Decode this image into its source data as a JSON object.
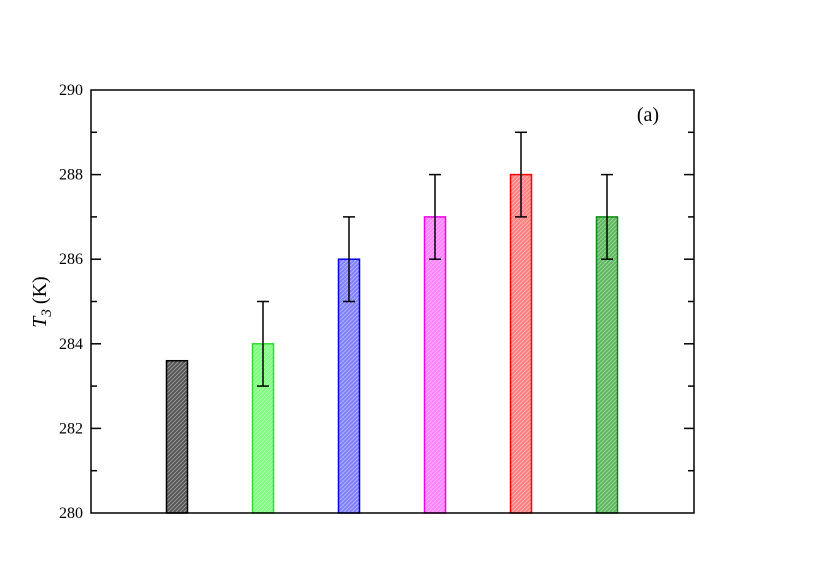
{
  "chart_data": {
    "type": "bar",
    "title": "",
    "panel_label": "(a)",
    "xlabel": "",
    "ylabel": {
      "symbol": "T",
      "subscript": "3",
      "unit": " (K)"
    },
    "ylim": [
      280,
      290
    ],
    "yticks": [
      280,
      282,
      284,
      286,
      288,
      290
    ],
    "ytick_labels": [
      "280",
      "282",
      "284",
      "286",
      "288",
      "290"
    ],
    "grid": false,
    "legend": "none",
    "bars": [
      {
        "value": 283.6,
        "error": null,
        "color": "#555555",
        "edge": "#000000"
      },
      {
        "value": 284.0,
        "error": 1.0,
        "color": "#7cff7c",
        "edge": "#2fdc2f"
      },
      {
        "value": 286.0,
        "error": 1.0,
        "color": "#7f7fff",
        "edge": "#0000ee"
      },
      {
        "value": 287.0,
        "error": 1.0,
        "color": "#ff7fff",
        "edge": "#ee00ee"
      },
      {
        "value": 288.0,
        "error": 1.0,
        "color": "#ff7f7f",
        "edge": "#ff0000"
      },
      {
        "value": 287.0,
        "error": 1.0,
        "color": "#5cb85c",
        "edge": "#108a10"
      }
    ]
  }
}
